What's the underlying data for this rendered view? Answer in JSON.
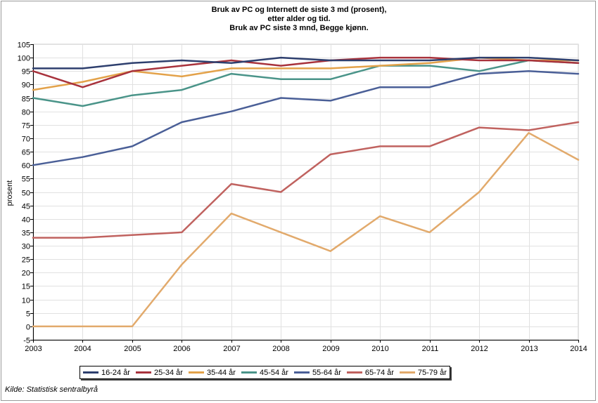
{
  "chart_data": {
    "type": "line",
    "title_lines": [
      "Bruk av PC og Internett de siste 3 md (prosent),",
      "etter alder og tid.",
      "Bruk av PC siste 3 mnd, Begge kjønn."
    ],
    "ylabel": "prosent",
    "xlabel": "",
    "x": [
      2003,
      2004,
      2005,
      2006,
      2007,
      2008,
      2009,
      2010,
      2011,
      2012,
      2013,
      2014
    ],
    "ylim": [
      -5,
      105
    ],
    "ytick_step": 5,
    "grid": true,
    "legend_position": "bottom",
    "series": [
      {
        "name": "16-24 år",
        "color": "#2e3f6e",
        "values": [
          96,
          96,
          98,
          99,
          98,
          100,
          99,
          99,
          99,
          100,
          100,
          99
        ]
      },
      {
        "name": "25-34 år",
        "color": "#a8323c",
        "values": [
          95,
          89,
          95,
          97,
          99,
          97,
          99,
          100,
          100,
          99,
          99,
          98
        ]
      },
      {
        "name": "35-44 år",
        "color": "#e3a24a",
        "values": [
          88,
          91,
          95,
          93,
          96,
          96,
          96,
          97,
          98,
          100,
          99,
          99
        ]
      },
      {
        "name": "45-54 år",
        "color": "#4a9489",
        "values": [
          85,
          82,
          86,
          88,
          94,
          92,
          92,
          97,
          97,
          95,
          99,
          98
        ]
      },
      {
        "name": "55-64 år",
        "color": "#4a5f97",
        "values": [
          60,
          63,
          67,
          76,
          80,
          85,
          84,
          89,
          89,
          94,
          95,
          94
        ]
      },
      {
        "name": "65-74 år",
        "color": "#c0625f",
        "values": [
          33,
          33,
          34,
          35,
          53,
          50,
          64,
          67,
          67,
          74,
          73,
          76
        ]
      },
      {
        "name": "75-79 år",
        "color": "#e2aa6c",
        "values": [
          0,
          0,
          0,
          23,
          42,
          35,
          28,
          41,
          35,
          50,
          72,
          62
        ]
      }
    ]
  },
  "source": "Kilde: Statistisk sentralbyrå"
}
